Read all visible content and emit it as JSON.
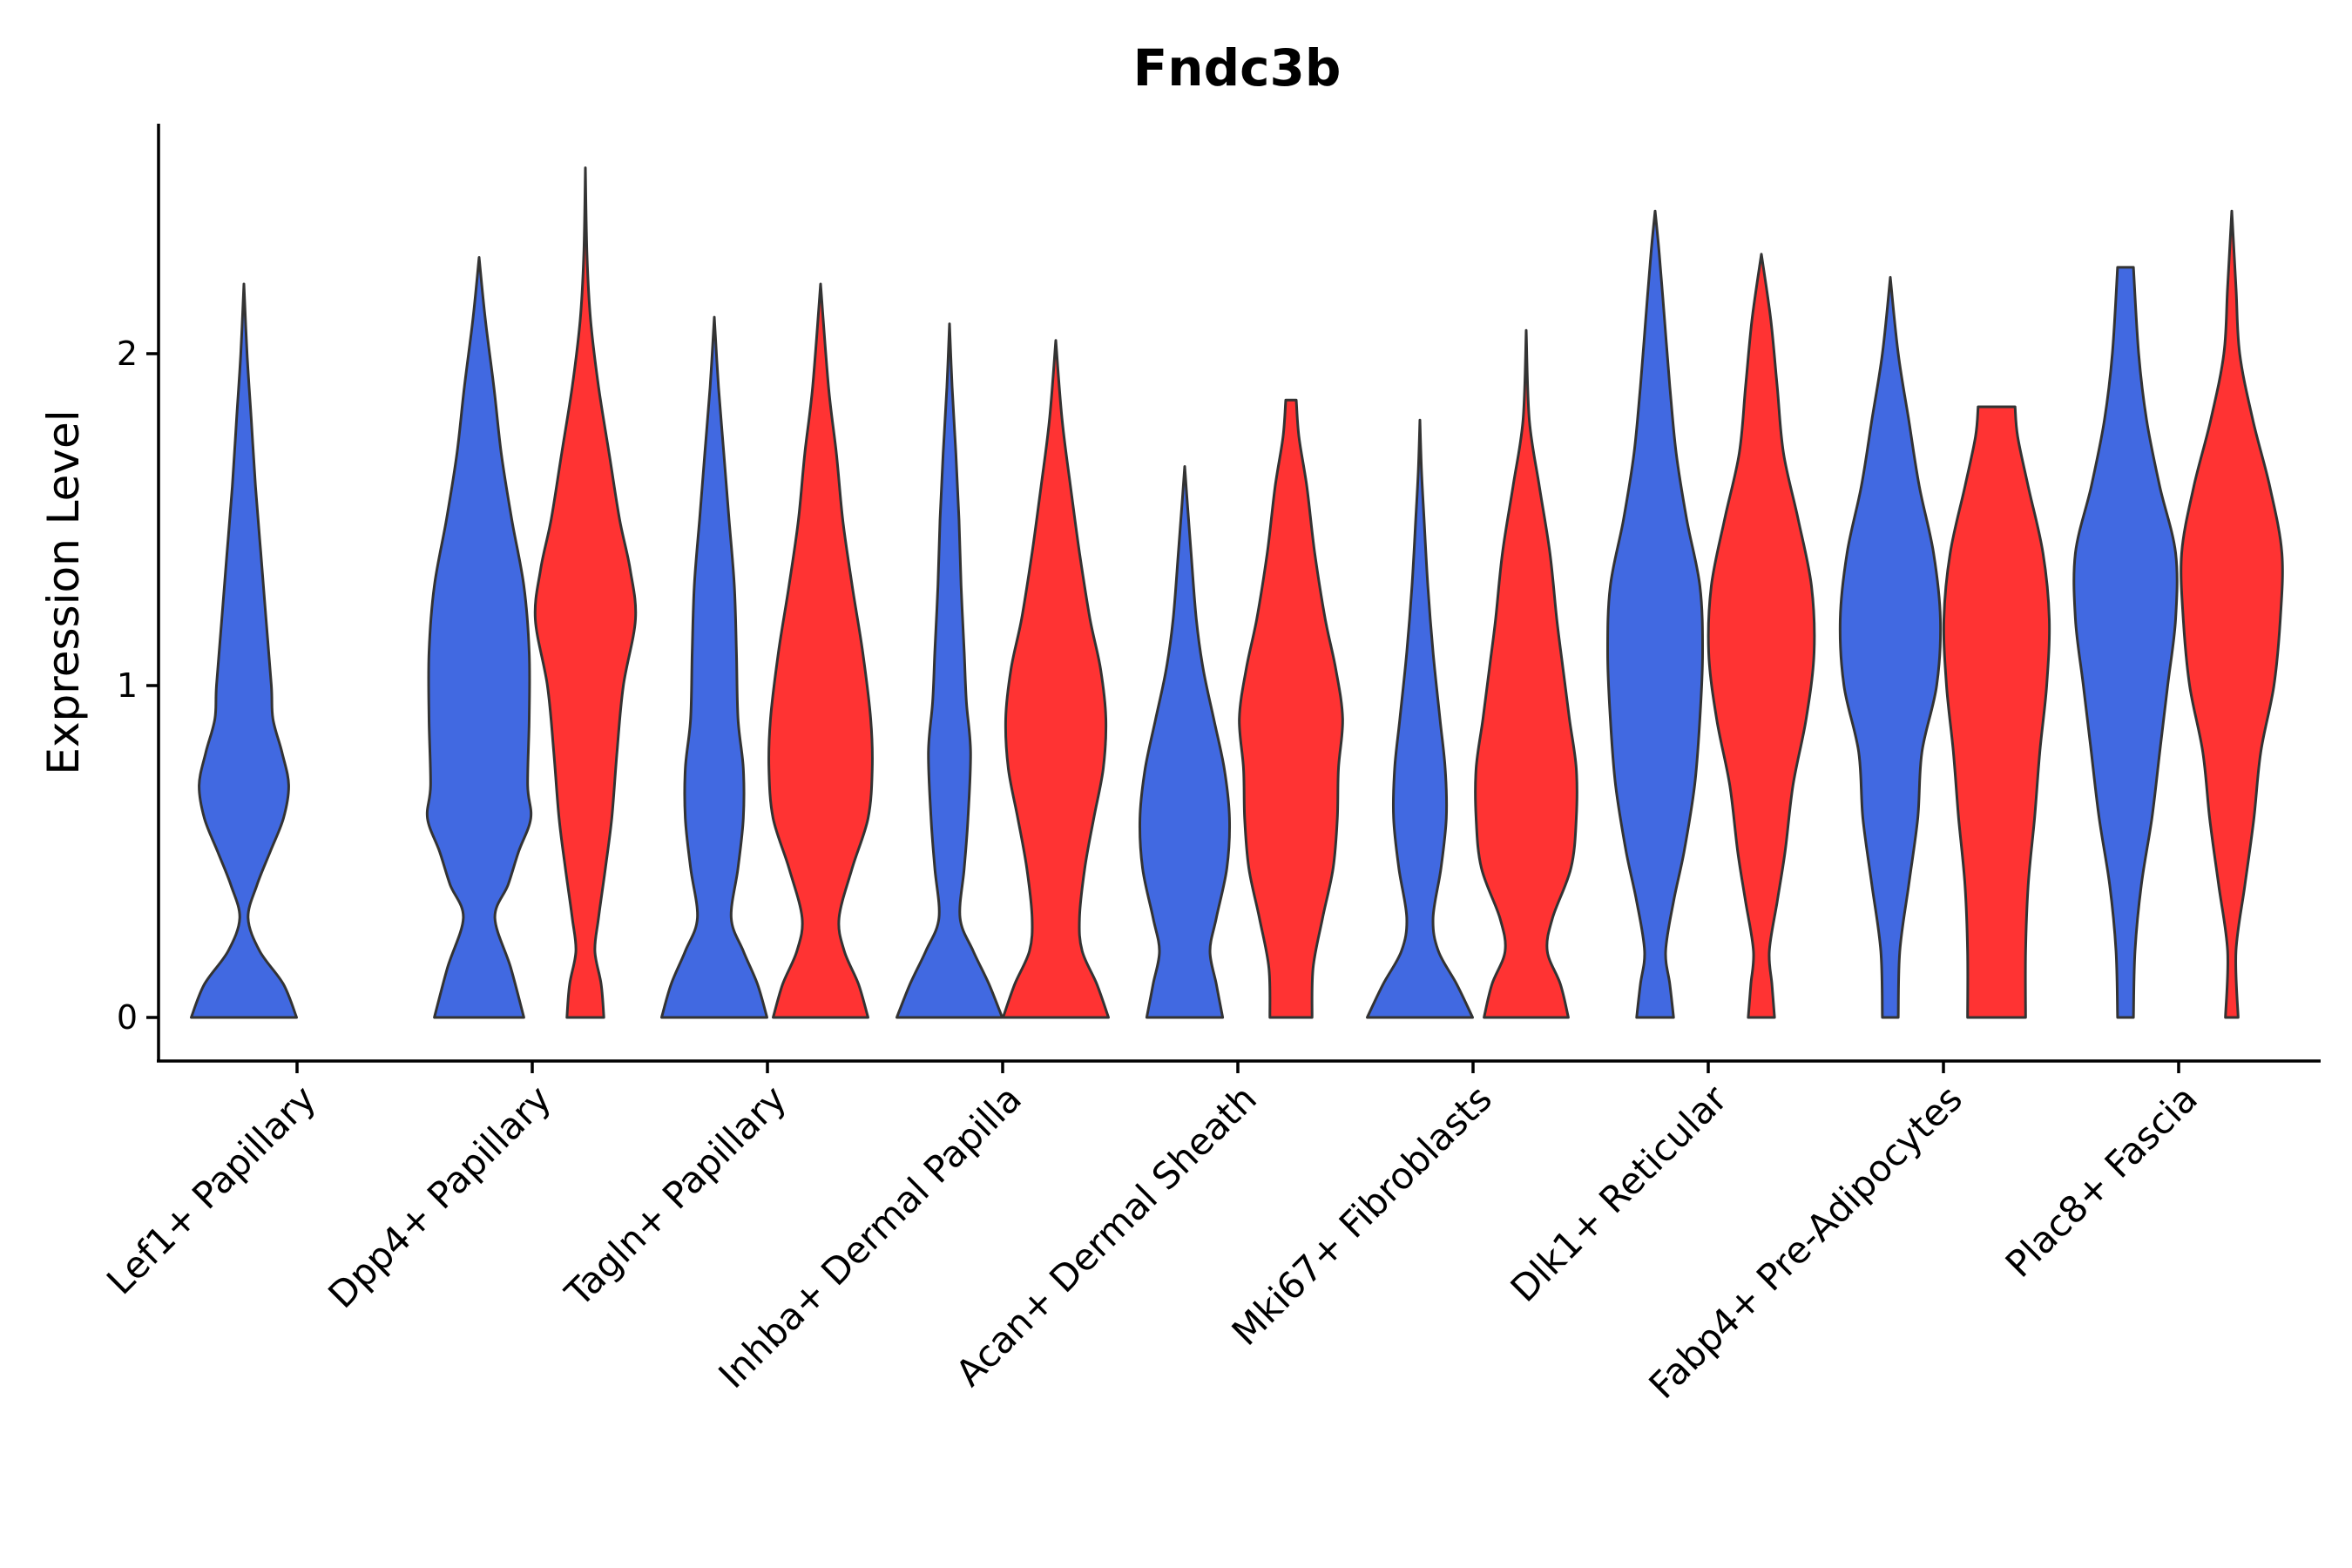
{
  "chart_data": {
    "type": "violin",
    "title": "Fndc3b",
    "xlabel": "",
    "ylabel": "Expression Level",
    "ylim": [
      -0.13,
      2.7
    ],
    "yticks": [
      0,
      1,
      2
    ],
    "grid": false,
    "legend": "none",
    "colors": {
      "blue": "#4169E1",
      "red": "#FF3333",
      "outline": "#333333"
    },
    "categories": [
      "Lef1+ Papillary",
      "Dpp4+ Papillary",
      "Tagln+ Papillary",
      "Inhba+ Dermal Papilla",
      "Acan+ Dermal Sheath",
      "Mki67+ Fibroblasts",
      "Dlk1+ Reticular",
      "Fabp4+ Pre-Adipocytes",
      "Plac8+ Fascia"
    ],
    "violins": [
      {
        "category": 0,
        "group": "blue",
        "max": 2.21,
        "density": [
          [
            0,
            1.0
          ],
          [
            0.1,
            0.75
          ],
          [
            0.2,
            0.3
          ],
          [
            0.3,
            0.08
          ],
          [
            0.4,
            0.25
          ],
          [
            0.5,
            0.5
          ],
          [
            0.6,
            0.75
          ],
          [
            0.7,
            0.85
          ],
          [
            0.8,
            0.72
          ],
          [
            0.9,
            0.55
          ],
          [
            1.0,
            0.52
          ],
          [
            1.2,
            0.42
          ],
          [
            1.4,
            0.32
          ],
          [
            1.6,
            0.22
          ],
          [
            1.8,
            0.14
          ],
          [
            2.0,
            0.06
          ],
          [
            2.21,
            0.0
          ]
        ]
      },
      {
        "category": 1,
        "group": "blue",
        "max": 2.29,
        "density": [
          [
            0,
            0.85
          ],
          [
            0.15,
            0.6
          ],
          [
            0.3,
            0.3
          ],
          [
            0.4,
            0.55
          ],
          [
            0.5,
            0.75
          ],
          [
            0.6,
            0.98
          ],
          [
            0.7,
            0.92
          ],
          [
            0.9,
            0.95
          ],
          [
            1.1,
            0.95
          ],
          [
            1.3,
            0.85
          ],
          [
            1.5,
            0.62
          ],
          [
            1.7,
            0.42
          ],
          [
            1.9,
            0.28
          ],
          [
            2.1,
            0.12
          ],
          [
            2.29,
            0.0
          ]
        ]
      },
      {
        "category": 1,
        "group": "red",
        "max": 2.56,
        "density": [
          [
            0,
            0.35
          ],
          [
            0.1,
            0.3
          ],
          [
            0.2,
            0.18
          ],
          [
            0.3,
            0.25
          ],
          [
            0.45,
            0.38
          ],
          [
            0.6,
            0.5
          ],
          [
            0.8,
            0.6
          ],
          [
            1.0,
            0.72
          ],
          [
            1.2,
            0.95
          ],
          [
            1.35,
            0.85
          ],
          [
            1.5,
            0.65
          ],
          [
            1.7,
            0.45
          ],
          [
            1.9,
            0.25
          ],
          [
            2.1,
            0.1
          ],
          [
            2.3,
            0.03
          ],
          [
            2.56,
            0.0
          ]
        ]
      },
      {
        "category": 2,
        "group": "blue",
        "max": 2.11,
        "density": [
          [
            0,
            1.0
          ],
          [
            0.1,
            0.82
          ],
          [
            0.2,
            0.55
          ],
          [
            0.3,
            0.32
          ],
          [
            0.45,
            0.45
          ],
          [
            0.6,
            0.55
          ],
          [
            0.75,
            0.55
          ],
          [
            0.9,
            0.45
          ],
          [
            1.1,
            0.42
          ],
          [
            1.3,
            0.38
          ],
          [
            1.5,
            0.28
          ],
          [
            1.7,
            0.18
          ],
          [
            1.9,
            0.08
          ],
          [
            2.11,
            0.0
          ]
        ]
      },
      {
        "category": 2,
        "group": "red",
        "max": 2.21,
        "density": [
          [
            0,
            0.9
          ],
          [
            0.1,
            0.72
          ],
          [
            0.2,
            0.45
          ],
          [
            0.3,
            0.35
          ],
          [
            0.45,
            0.6
          ],
          [
            0.6,
            0.9
          ],
          [
            0.75,
            0.98
          ],
          [
            0.9,
            0.95
          ],
          [
            1.1,
            0.8
          ],
          [
            1.3,
            0.6
          ],
          [
            1.5,
            0.42
          ],
          [
            1.7,
            0.3
          ],
          [
            1.9,
            0.15
          ],
          [
            2.21,
            0.0
          ]
        ]
      },
      {
        "category": 3,
        "group": "blue",
        "max": 2.09,
        "density": [
          [
            0,
            1.0
          ],
          [
            0.1,
            0.75
          ],
          [
            0.2,
            0.45
          ],
          [
            0.3,
            0.2
          ],
          [
            0.45,
            0.28
          ],
          [
            0.6,
            0.35
          ],
          [
            0.8,
            0.4
          ],
          [
            0.95,
            0.32
          ],
          [
            1.1,
            0.28
          ],
          [
            1.3,
            0.22
          ],
          [
            1.5,
            0.18
          ],
          [
            1.7,
            0.12
          ],
          [
            1.9,
            0.05
          ],
          [
            2.09,
            0.0
          ]
        ]
      },
      {
        "category": 3,
        "group": "red",
        "max": 2.04,
        "density": [
          [
            0,
            1.0
          ],
          [
            0.1,
            0.78
          ],
          [
            0.2,
            0.5
          ],
          [
            0.3,
            0.45
          ],
          [
            0.45,
            0.55
          ],
          [
            0.6,
            0.72
          ],
          [
            0.75,
            0.9
          ],
          [
            0.9,
            0.95
          ],
          [
            1.05,
            0.85
          ],
          [
            1.2,
            0.65
          ],
          [
            1.4,
            0.45
          ],
          [
            1.6,
            0.28
          ],
          [
            1.8,
            0.12
          ],
          [
            2.04,
            0.0
          ]
        ]
      },
      {
        "category": 4,
        "group": "blue",
        "max": 1.66,
        "density": [
          [
            0,
            0.72
          ],
          [
            0.1,
            0.6
          ],
          [
            0.2,
            0.48
          ],
          [
            0.3,
            0.6
          ],
          [
            0.45,
            0.8
          ],
          [
            0.6,
            0.85
          ],
          [
            0.75,
            0.75
          ],
          [
            0.9,
            0.55
          ],
          [
            1.05,
            0.35
          ],
          [
            1.2,
            0.22
          ],
          [
            1.4,
            0.12
          ],
          [
            1.55,
            0.05
          ],
          [
            1.66,
            0.0
          ]
        ]
      },
      {
        "category": 4,
        "group": "red",
        "max": 1.86,
        "density": [
          [
            0,
            0.4
          ],
          [
            0.15,
            0.42
          ],
          [
            0.3,
            0.6
          ],
          [
            0.45,
            0.8
          ],
          [
            0.6,
            0.88
          ],
          [
            0.75,
            0.9
          ],
          [
            0.9,
            0.98
          ],
          [
            1.05,
            0.85
          ],
          [
            1.2,
            0.65
          ],
          [
            1.4,
            0.45
          ],
          [
            1.6,
            0.3
          ],
          [
            1.75,
            0.15
          ],
          [
            1.86,
            0.1
          ]
        ]
      },
      {
        "category": 5,
        "group": "blue",
        "max": 1.8,
        "density": [
          [
            0,
            1.0
          ],
          [
            0.1,
            0.7
          ],
          [
            0.2,
            0.35
          ],
          [
            0.3,
            0.25
          ],
          [
            0.45,
            0.4
          ],
          [
            0.6,
            0.5
          ],
          [
            0.75,
            0.48
          ],
          [
            0.9,
            0.38
          ],
          [
            1.1,
            0.25
          ],
          [
            1.3,
            0.15
          ],
          [
            1.5,
            0.08
          ],
          [
            1.65,
            0.03
          ],
          [
            1.8,
            0.0
          ]
        ]
      },
      {
        "category": 5,
        "group": "red",
        "max": 2.07,
        "density": [
          [
            0,
            0.8
          ],
          [
            0.1,
            0.65
          ],
          [
            0.2,
            0.4
          ],
          [
            0.3,
            0.5
          ],
          [
            0.45,
            0.85
          ],
          [
            0.6,
            0.95
          ],
          [
            0.75,
            0.95
          ],
          [
            0.9,
            0.82
          ],
          [
            1.05,
            0.7
          ],
          [
            1.2,
            0.58
          ],
          [
            1.4,
            0.45
          ],
          [
            1.6,
            0.25
          ],
          [
            1.8,
            0.06
          ],
          [
            2.07,
            0.0
          ]
        ]
      },
      {
        "category": 6,
        "group": "blue",
        "max": 2.43,
        "density": [
          [
            0,
            0.35
          ],
          [
            0.1,
            0.28
          ],
          [
            0.2,
            0.2
          ],
          [
            0.35,
            0.35
          ],
          [
            0.5,
            0.55
          ],
          [
            0.7,
            0.75
          ],
          [
            0.9,
            0.85
          ],
          [
            1.1,
            0.9
          ],
          [
            1.3,
            0.85
          ],
          [
            1.5,
            0.6
          ],
          [
            1.7,
            0.4
          ],
          [
            1.9,
            0.28
          ],
          [
            2.1,
            0.18
          ],
          [
            2.3,
            0.08
          ],
          [
            2.43,
            0.0
          ]
        ]
      },
      {
        "category": 6,
        "group": "red",
        "max": 2.3,
        "density": [
          [
            0,
            0.25
          ],
          [
            0.1,
            0.2
          ],
          [
            0.2,
            0.15
          ],
          [
            0.35,
            0.3
          ],
          [
            0.5,
            0.45
          ],
          [
            0.7,
            0.6
          ],
          [
            0.9,
            0.85
          ],
          [
            1.1,
            1.0
          ],
          [
            1.3,
            0.95
          ],
          [
            1.5,
            0.7
          ],
          [
            1.7,
            0.42
          ],
          [
            1.9,
            0.3
          ],
          [
            2.1,
            0.18
          ],
          [
            2.3,
            0.0
          ]
        ]
      },
      {
        "category": 7,
        "group": "blue",
        "max": 2.23,
        "density": [
          [
            0,
            0.15
          ],
          [
            0.2,
            0.18
          ],
          [
            0.4,
            0.35
          ],
          [
            0.6,
            0.52
          ],
          [
            0.8,
            0.6
          ],
          [
            1.0,
            0.88
          ],
          [
            1.2,
            0.95
          ],
          [
            1.4,
            0.82
          ],
          [
            1.6,
            0.55
          ],
          [
            1.8,
            0.35
          ],
          [
            2.0,
            0.15
          ],
          [
            2.23,
            0.0
          ]
        ]
      },
      {
        "category": 7,
        "group": "red",
        "max": 1.84,
        "density": [
          [
            0,
            0.55
          ],
          [
            0.2,
            0.55
          ],
          [
            0.4,
            0.6
          ],
          [
            0.6,
            0.72
          ],
          [
            0.8,
            0.82
          ],
          [
            1.0,
            0.95
          ],
          [
            1.2,
            1.0
          ],
          [
            1.4,
            0.88
          ],
          [
            1.6,
            0.6
          ],
          [
            1.75,
            0.4
          ],
          [
            1.84,
            0.35
          ]
        ]
      },
      {
        "category": 8,
        "group": "blue",
        "max": 2.26,
        "density": [
          [
            0,
            0.15
          ],
          [
            0.2,
            0.18
          ],
          [
            0.4,
            0.3
          ],
          [
            0.6,
            0.5
          ],
          [
            0.8,
            0.65
          ],
          [
            1.0,
            0.8
          ],
          [
            1.2,
            0.95
          ],
          [
            1.4,
            0.95
          ],
          [
            1.6,
            0.65
          ],
          [
            1.8,
            0.4
          ],
          [
            2.0,
            0.25
          ],
          [
            2.26,
            0.15
          ]
        ]
      },
      {
        "category": 8,
        "group": "red",
        "max": 2.43,
        "density": [
          [
            0,
            0.12
          ],
          [
            0.2,
            0.08
          ],
          [
            0.4,
            0.25
          ],
          [
            0.6,
            0.42
          ],
          [
            0.8,
            0.55
          ],
          [
            1.0,
            0.8
          ],
          [
            1.2,
            0.92
          ],
          [
            1.4,
            0.95
          ],
          [
            1.6,
            0.72
          ],
          [
            1.8,
            0.4
          ],
          [
            2.0,
            0.15
          ],
          [
            2.2,
            0.08
          ],
          [
            2.43,
            0.0
          ]
        ]
      }
    ]
  }
}
